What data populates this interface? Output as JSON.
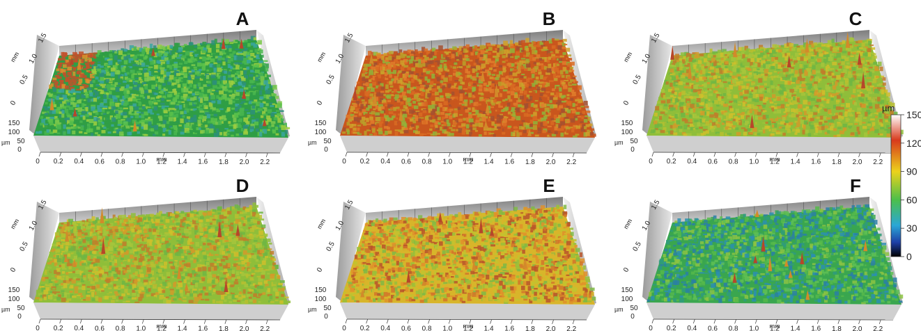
{
  "panels": [
    {
      "label": "A",
      "dominant": "green",
      "hot_corner": "top-left"
    },
    {
      "label": "B",
      "dominant": "orange"
    },
    {
      "label": "C",
      "dominant": "yellow-green"
    },
    {
      "label": "D",
      "dominant": "yellow-green"
    },
    {
      "label": "E",
      "dominant": "orange-yellow"
    },
    {
      "label": "F",
      "dominant": "green-blue"
    }
  ],
  "axes": {
    "x_ticks": [
      "0",
      "0.2",
      "0.4",
      "0.6",
      "0.8",
      "1.0",
      "1.2",
      "1.4",
      "1.6",
      "1.8",
      "2.0",
      "2.2"
    ],
    "x_unit": "mm",
    "y_ticks": [
      "0",
      "0.5",
      "1.0",
      "1.5"
    ],
    "y_unit": "mm",
    "z_ticks": [
      "0",
      "50",
      "100",
      "150"
    ],
    "z_unit": "µm"
  },
  "colorbar": {
    "unit": "µm",
    "ticks": [
      "150",
      "120",
      "90",
      "60",
      "30",
      "0"
    ],
    "min": 0,
    "max": 150,
    "colors": [
      "#ffffff",
      "#d83a1c",
      "#ecd21c",
      "#4cbf4a",
      "#2aa7d6",
      "#1d3fa6",
      "#000000"
    ]
  }
}
